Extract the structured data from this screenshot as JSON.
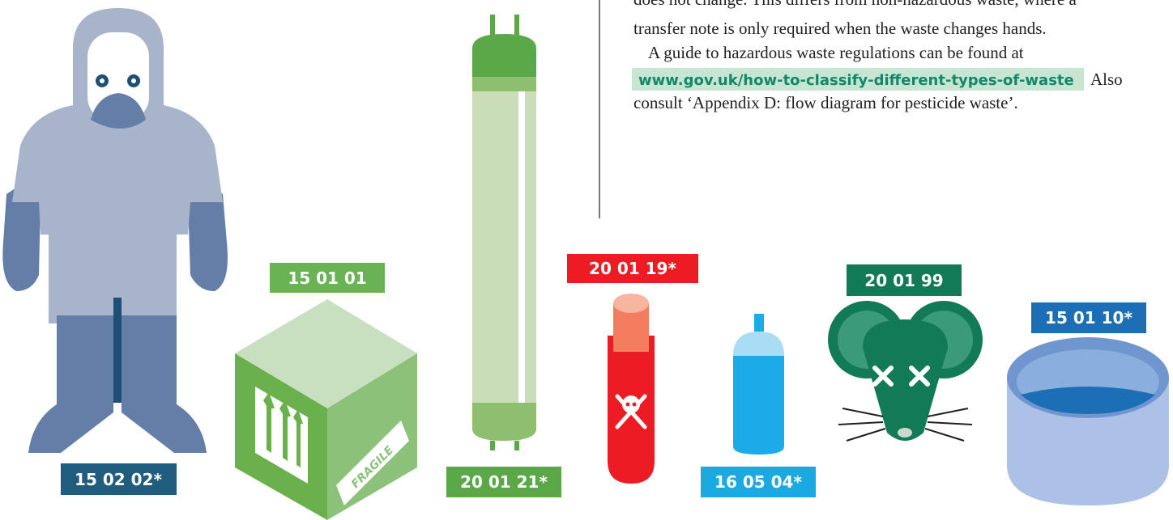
{
  "text": {
    "line_cut": "does not change. This differs from non-hazardous waste, where a",
    "line_2": "transfer note is only required when the waste changes hands.",
    "line_3": "A guide to hazardous waste regulations can be found at",
    "link": "www.gov.uk/how-to-classify-different-types-of-waste",
    "after_link": "Also",
    "line_5": "consult ‘Appendix D: flow diagram for pesticide waste’."
  },
  "labels": {
    "protective_suit": "15 02 02*",
    "cardboard_box": "15 01 01",
    "fluorescent_tube": "20 01 21*",
    "test_tube": "20 01 19*",
    "aerosol_can": "16 05 04*",
    "dead_mouse": "20 01 99",
    "container": "15 01 10*",
    "box_sticker": "FRAGILE"
  }
}
